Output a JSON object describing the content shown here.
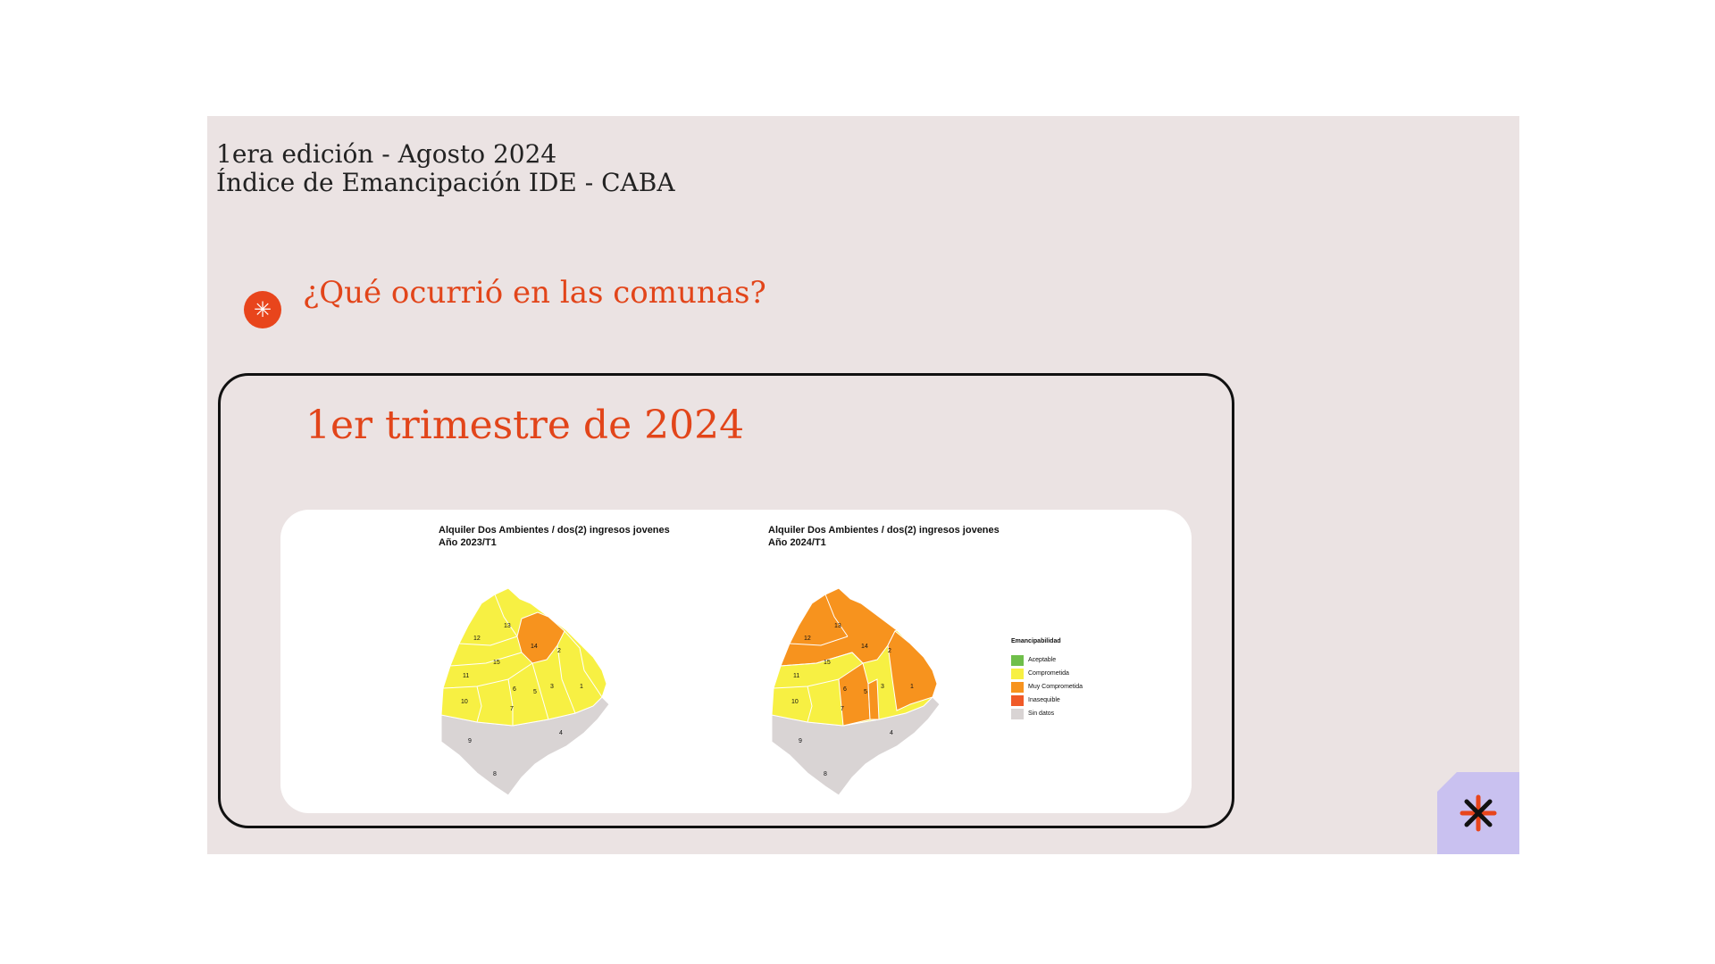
{
  "header": {
    "edition": "1era edición - Agosto 2024",
    "subtitle": "Índice de Emancipación IDE - CABA"
  },
  "section": {
    "badge_icon": "asterisk-icon",
    "question": "¿Qué ocurrió en las comunas?"
  },
  "card": {
    "title": "1er trimestre de 2024"
  },
  "maps": [
    {
      "title_line1": "Alquiler Dos Ambientes / dos(2) ingresos jovenes",
      "title_line2": "Año 2023/T1"
    },
    {
      "title_line1": "Alquiler Dos Ambientes / dos(2) ingresos jovenes",
      "title_line2": "Año 2024/T1"
    }
  ],
  "legend": {
    "title": "Emancipabilidad",
    "items": [
      {
        "label": "Aceptable",
        "color": "#6fbf4a"
      },
      {
        "label": "Comprometida",
        "color": "#f7f043"
      },
      {
        "label": "Muy Comprometida",
        "color": "#f7931e"
      },
      {
        "label": "Inasequible",
        "color": "#f05a28"
      },
      {
        "label": "Sin datos",
        "color": "#d9d4d4"
      }
    ]
  },
  "comuna_labels": [
    "1",
    "2",
    "3",
    "4",
    "5",
    "6",
    "7",
    "8",
    "9",
    "10",
    "11",
    "12",
    "13",
    "14",
    "15"
  ],
  "colors": {
    "accent": "#e2451a",
    "slide_bg": "#ebe3e3",
    "corner_bg": "#c9c1f0"
  },
  "corner_icon": "asterisk-icon"
}
